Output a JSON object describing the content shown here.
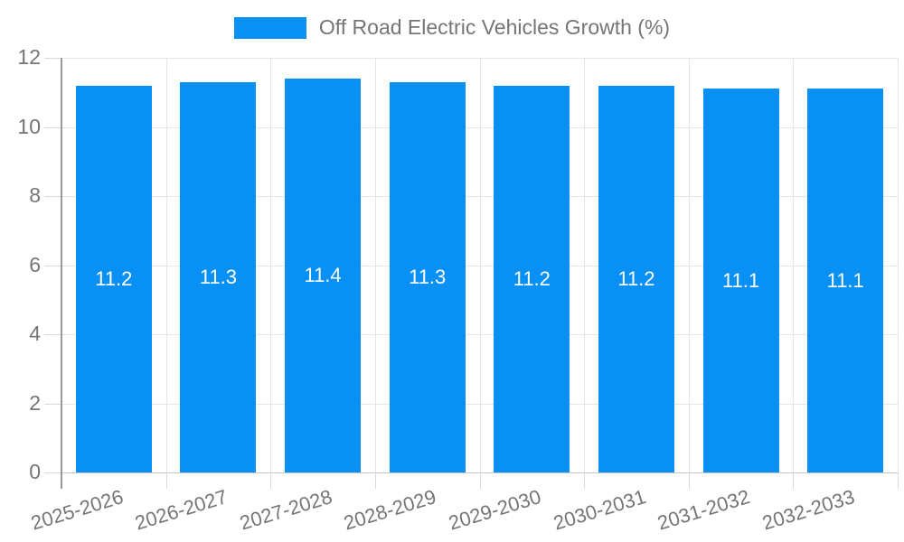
{
  "legend": {
    "label": "Off Road Electric Vehicles Growth (%)"
  },
  "chart_data": {
    "type": "bar",
    "title": "Off Road Electric Vehicles Growth (%)",
    "categories": [
      "2025-2026",
      "2026-2027",
      "2027-2028",
      "2028-2029",
      "2029-2030",
      "2030-2031",
      "2031-2032",
      "2032-2033"
    ],
    "values": [
      11.2,
      11.3,
      11.4,
      11.3,
      11.2,
      11.2,
      11.1,
      11.1
    ],
    "value_labels": [
      "11.2",
      "11.3",
      "11.4",
      "11.3",
      "11.2",
      "11.2",
      "11.1",
      "11.1"
    ],
    "xlabel": "",
    "ylabel": "",
    "ylim": [
      0,
      12
    ],
    "yticks": [
      0,
      2,
      4,
      6,
      8,
      10,
      12
    ],
    "grid": true,
    "legend_position": "top",
    "x_tick_rotation_deg": 17,
    "colors": {
      "bar": "#0890f5",
      "value_label_text": "#ffffff",
      "axis_text": "#757575",
      "legend_text": "#757575",
      "gridline": "#e5e5e5",
      "zero_line": "#c4c4c4",
      "axis_line": "#999999",
      "tick_mark": "#d9d9d9",
      "background": "#ffffff"
    }
  }
}
